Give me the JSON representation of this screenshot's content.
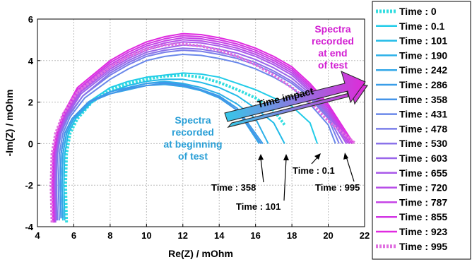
{
  "chart_data": {
    "type": "line",
    "title": "",
    "xlabel": "Re(Z) / mOhm",
    "ylabel": "-Im(Z) / mOhm",
    "xlim": [
      4,
      22
    ],
    "ylim": [
      -4,
      6
    ],
    "x_ticks": [
      4,
      6,
      8,
      10,
      12,
      14,
      16,
      18,
      20,
      22
    ],
    "y_ticks": [
      -4,
      -2,
      0,
      2,
      4,
      6
    ],
    "grid": true,
    "legend_position": "right",
    "series": [
      {
        "name": "Time : 0",
        "color": "#33dde0",
        "dash": "dotted",
        "x": [
          5.6,
          5.55,
          5.6,
          5.8,
          6.2,
          7,
          8,
          9,
          10,
          11,
          12,
          13,
          14,
          15,
          16,
          17,
          17.6
        ],
        "y": [
          -3.8,
          -2,
          -0.5,
          0.5,
          1.2,
          2,
          2.6,
          2.9,
          3.1,
          3.25,
          3.3,
          3.2,
          2.95,
          2.6,
          2.2,
          1.6,
          0.9
        ]
      },
      {
        "name": "Time : 0.1",
        "color": "#22cce8",
        "dash": "solid",
        "x": [
          5.4,
          5.35,
          5.4,
          5.6,
          6,
          6.8,
          8,
          9,
          10,
          11,
          12,
          13,
          14,
          15,
          16,
          17,
          18,
          19,
          19.4
        ],
        "y": [
          -3.7,
          -2,
          -0.5,
          0.5,
          1.2,
          2,
          2.7,
          3,
          3.2,
          3.3,
          3.4,
          3.35,
          3.2,
          2.9,
          2.6,
          2.2,
          1.8,
          1.0,
          0
        ]
      },
      {
        "name": "Time : 101",
        "color": "#22bbe8",
        "dash": "solid",
        "x": [
          5.5,
          5.45,
          5.5,
          5.7,
          6.1,
          7,
          8,
          9,
          10,
          11,
          12,
          13,
          14,
          15,
          16,
          17,
          17.6
        ],
        "y": [
          -3.7,
          -2,
          -0.5,
          0.5,
          1.2,
          2,
          2.5,
          2.8,
          3,
          3.1,
          3.1,
          2.95,
          2.7,
          2.3,
          1.7,
          1.0,
          0
        ]
      },
      {
        "name": "Time : 190",
        "color": "#2cb0e8",
        "dash": "solid",
        "x": [
          5.4,
          5.35,
          5.4,
          5.6,
          6,
          6.9,
          8,
          9,
          10,
          11,
          12,
          13,
          14,
          15,
          16,
          16.7
        ],
        "y": [
          -3.6,
          -2,
          -0.5,
          0.5,
          1.2,
          2,
          2.5,
          2.7,
          2.9,
          3,
          2.9,
          2.7,
          2.4,
          1.9,
          1.2,
          0
        ]
      },
      {
        "name": "Time : 242",
        "color": "#33a8e8",
        "dash": "solid",
        "x": [
          5.4,
          5.35,
          5.4,
          5.6,
          6,
          6.9,
          8,
          9,
          10,
          11,
          12,
          13,
          14,
          15,
          16.2
        ],
        "y": [
          -3.6,
          -2,
          -0.5,
          0.5,
          1.2,
          2,
          2.4,
          2.6,
          2.8,
          2.85,
          2.75,
          2.55,
          2.2,
          1.6,
          0
        ]
      },
      {
        "name": "Time : 286",
        "color": "#3a9ee8",
        "dash": "solid",
        "x": [
          5.3,
          5.25,
          5.3,
          5.5,
          5.9,
          6.8,
          8,
          9,
          10,
          11,
          12,
          13,
          14,
          15,
          16.4
        ],
        "y": [
          -3.6,
          -2,
          -0.5,
          0.5,
          1.2,
          2,
          2.5,
          2.7,
          2.9,
          2.95,
          2.85,
          2.6,
          2.3,
          1.7,
          0
        ]
      },
      {
        "name": "Time : 358",
        "color": "#4494e8",
        "dash": "solid",
        "x": [
          5.3,
          5.25,
          5.3,
          5.5,
          5.9,
          6.8,
          8,
          9,
          10,
          11,
          12,
          13,
          14,
          15,
          16.3
        ],
        "y": [
          -3.6,
          -2,
          -0.5,
          0.5,
          1.2,
          2,
          2.4,
          2.65,
          2.8,
          2.9,
          2.8,
          2.6,
          2.25,
          1.6,
          0
        ]
      },
      {
        "name": "Time : 431",
        "color": "#6a88ea",
        "dash": "solid",
        "x": [
          5.2,
          5.15,
          5.2,
          5.4,
          5.8,
          6.6,
          8,
          9,
          10,
          11,
          12,
          13,
          14,
          15,
          16,
          17,
          18,
          19,
          20,
          20.4
        ],
        "y": [
          -3.7,
          -2,
          -0.5,
          0.5,
          1.3,
          2.2,
          3.1,
          3.6,
          4,
          4.2,
          4.3,
          4.25,
          4.1,
          3.9,
          3.6,
          3.2,
          2.7,
          1.9,
          0.9,
          0
        ]
      },
      {
        "name": "Time : 478",
        "color": "#7a7eea",
        "dash": "solid",
        "x": [
          5.1,
          5.05,
          5.1,
          5.3,
          5.7,
          6.5,
          8,
          9,
          10,
          11,
          12,
          13,
          14,
          15,
          16,
          17,
          18,
          19,
          20,
          20.6
        ],
        "y": [
          -3.7,
          -2,
          -0.5,
          0.5,
          1.3,
          2.3,
          3.3,
          3.8,
          4.2,
          4.4,
          4.5,
          4.45,
          4.3,
          4.1,
          3.8,
          3.4,
          2.9,
          2.2,
          1.2,
          0
        ]
      },
      {
        "name": "Time : 530",
        "color": "#8a72ea",
        "dash": "solid",
        "x": [
          5.05,
          5,
          5.05,
          5.25,
          5.65,
          6.5,
          8,
          9,
          10,
          11,
          12,
          13,
          14,
          15,
          16,
          17,
          18,
          19,
          20,
          20.8
        ],
        "y": [
          -3.7,
          -2,
          -0.5,
          0.5,
          1.3,
          2.3,
          3.4,
          3.9,
          4.3,
          4.5,
          4.6,
          4.55,
          4.4,
          4.2,
          3.9,
          3.5,
          3.0,
          2.3,
          1.3,
          0
        ]
      },
      {
        "name": "Time : 603",
        "color": "#9a66ea",
        "dash": "solid",
        "x": [
          5,
          4.95,
          5,
          5.2,
          5.6,
          6.4,
          8,
          9,
          10,
          11,
          12,
          13,
          14,
          15,
          16,
          17,
          18,
          19,
          20,
          21
        ],
        "y": [
          -3.7,
          -2,
          -0.5,
          0.5,
          1.3,
          2.4,
          3.5,
          4,
          4.4,
          4.6,
          4.75,
          4.7,
          4.55,
          4.35,
          4.05,
          3.65,
          3.15,
          2.4,
          1.4,
          0
        ]
      },
      {
        "name": "Time : 655",
        "color": "#aa5aea",
        "dash": "solid",
        "x": [
          5,
          4.95,
          5,
          5.2,
          5.6,
          6.4,
          8,
          9,
          10,
          11,
          12,
          13,
          14,
          15,
          16,
          17,
          18,
          19,
          20,
          21
        ],
        "y": [
          -3.8,
          -2,
          -0.5,
          0.5,
          1.4,
          2.5,
          3.6,
          4.1,
          4.5,
          4.75,
          4.9,
          4.85,
          4.7,
          4.5,
          4.2,
          3.8,
          3.3,
          2.5,
          1.5,
          0
        ]
      },
      {
        "name": "Time : 720",
        "color": "#b84ee8",
        "dash": "solid",
        "x": [
          4.95,
          4.9,
          4.95,
          5.15,
          5.55,
          6.3,
          8,
          9,
          10,
          11,
          12,
          13,
          14,
          15,
          16,
          17,
          18,
          19,
          20,
          21.1
        ],
        "y": [
          -3.8,
          -2,
          -0.5,
          0.5,
          1.4,
          2.5,
          3.7,
          4.2,
          4.6,
          4.85,
          5,
          4.95,
          4.8,
          4.6,
          4.3,
          3.9,
          3.4,
          2.6,
          1.6,
          0
        ]
      },
      {
        "name": "Time : 787",
        "color": "#c542e6",
        "dash": "solid",
        "x": [
          4.9,
          4.85,
          4.9,
          5.1,
          5.5,
          6.3,
          8,
          9,
          10,
          11,
          12,
          13,
          14,
          15,
          16,
          17,
          18,
          19,
          20,
          21.2
        ],
        "y": [
          -3.8,
          -2,
          -0.5,
          0.5,
          1.4,
          2.6,
          3.8,
          4.3,
          4.7,
          4.95,
          5.1,
          5.05,
          4.9,
          4.7,
          4.4,
          4.0,
          3.5,
          2.7,
          1.7,
          0
        ]
      },
      {
        "name": "Time : 855",
        "color": "#d236e4",
        "dash": "solid",
        "x": [
          4.9,
          4.85,
          4.9,
          5.1,
          5.5,
          6.2,
          8,
          9,
          10,
          11,
          12,
          13,
          14,
          15,
          16,
          17,
          18,
          19,
          20,
          21.3
        ],
        "y": [
          -3.8,
          -2,
          -0.5,
          0.5,
          1.5,
          2.6,
          3.9,
          4.4,
          4.8,
          5.05,
          5.2,
          5.15,
          5.0,
          4.8,
          4.5,
          4.1,
          3.6,
          2.8,
          1.8,
          0
        ]
      },
      {
        "name": "Time : 923",
        "color": "#e02ae0",
        "dash": "solid",
        "x": [
          4.85,
          4.8,
          4.85,
          5.05,
          5.45,
          6.2,
          8,
          9,
          10,
          11,
          12,
          13,
          14,
          15,
          16,
          17,
          18,
          19,
          20,
          21.4
        ],
        "y": [
          -3.8,
          -2,
          -0.5,
          0.5,
          1.5,
          2.7,
          4.0,
          4.5,
          4.9,
          5.15,
          5.3,
          5.25,
          5.1,
          4.9,
          4.6,
          4.2,
          3.7,
          2.9,
          1.9,
          0
        ]
      },
      {
        "name": "Time : 995",
        "color": "#e070e0",
        "dash": "dotted",
        "x": [
          4.8,
          4.75,
          4.8,
          5,
          5.4,
          6.2,
          8,
          9,
          10,
          11,
          12,
          13,
          14,
          15,
          16,
          17,
          18,
          19,
          20,
          21.5
        ],
        "y": [
          -3.8,
          -2,
          -0.5,
          0.5,
          1.4,
          2.5,
          3.7,
          4.2,
          4.55,
          4.75,
          4.8,
          4.7,
          4.5,
          4.2,
          3.8,
          3.3,
          2.7,
          2.0,
          1.1,
          0
        ]
      }
    ],
    "annotations": [
      {
        "text": "Spectra recorded at beginning of test",
        "lines": [
          "Spectra",
          "recorded",
          "at beginning",
          "of test"
        ],
        "color": "#2a9fd6"
      },
      {
        "text": "Spectra recorded at end of test",
        "lines": [
          "Spectra",
          "recorded",
          "at end",
          "of test"
        ],
        "color": "#d21fd2"
      },
      {
        "text": "Time impact",
        "arrow": true
      },
      {
        "text": "Time : 358",
        "points_to": [
          16.3,
          0
        ]
      },
      {
        "text": "Time : 101",
        "points_to": [
          17.6,
          0
        ]
      },
      {
        "text": "Time : 0.1",
        "points_to": [
          19.4,
          0
        ]
      },
      {
        "text": "Time : 995",
        "points_to": [
          21.5,
          0
        ]
      }
    ]
  }
}
